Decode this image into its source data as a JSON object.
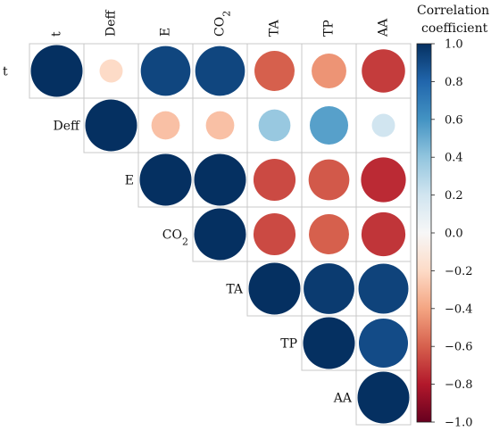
{
  "chart_data": {
    "type": "heatmap",
    "subtype": "correlation-circles-upper-triangle",
    "variables": [
      "t",
      "Deff",
      "E",
      "CO2",
      "TA",
      "TP",
      "AA"
    ],
    "variable_labels": [
      {
        "base": "t",
        "sub": ""
      },
      {
        "base": "Deff",
        "sub": ""
      },
      {
        "base": "E",
        "sub": ""
      },
      {
        "base": "CO",
        "sub": "2"
      },
      {
        "base": "TA",
        "sub": ""
      },
      {
        "base": "TP",
        "sub": ""
      },
      {
        "base": "AA",
        "sub": ""
      }
    ],
    "matrix": [
      [
        1.0,
        -0.2,
        0.92,
        0.92,
        -0.6,
        -0.45,
        -0.7
      ],
      [
        null,
        1.0,
        -0.3,
        -0.3,
        0.38,
        0.55,
        0.2
      ],
      [
        null,
        null,
        1.0,
        1.0,
        -0.66,
        -0.62,
        -0.75
      ],
      [
        null,
        null,
        null,
        1.0,
        -0.66,
        -0.6,
        -0.72
      ],
      [
        null,
        null,
        null,
        null,
        1.0,
        0.96,
        0.93
      ],
      [
        null,
        null,
        null,
        null,
        null,
        1.0,
        0.9
      ],
      [
        null,
        null,
        null,
        null,
        null,
        null,
        1.0
      ]
    ],
    "colorbar": {
      "title_line1": "Correlation",
      "title_line2": "coefficient",
      "range": [
        -1,
        1
      ],
      "ticks": [
        "1.0",
        "0.8",
        "0.6",
        "0.4",
        "0.2",
        "0.0",
        "−0.2",
        "−0.4",
        "−0.6",
        "−0.8",
        "−1.0"
      ],
      "tick_values": [
        1,
        0.8,
        0.6,
        0.4,
        0.2,
        0,
        -0.2,
        -0.4,
        -0.6,
        -0.8,
        -1
      ],
      "palette": {
        "-1.0": "#67001f",
        "-0.8": "#b2182b",
        "-0.6": "#d6604d",
        "-0.4": "#f4a582",
        "-0.2": "#fddbc7",
        "0.0": "#f7f7f7",
        "0.2": "#d1e5f0",
        "0.4": "#92c5de",
        "0.6": "#4393c3",
        "0.8": "#2166ac",
        "1.0": "#053061"
      }
    }
  }
}
